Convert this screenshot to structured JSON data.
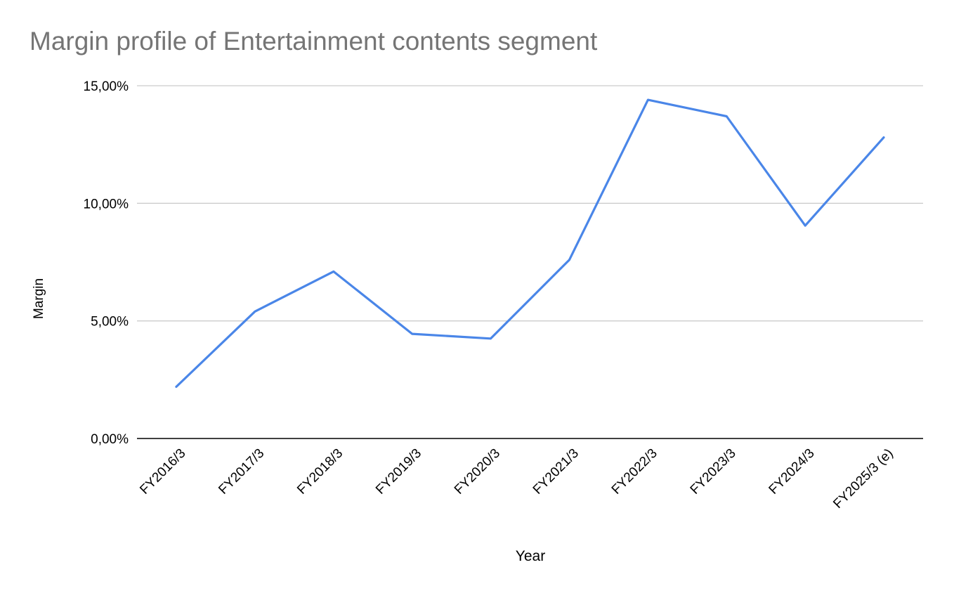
{
  "chart_data": {
    "type": "line",
    "title": "Margin profile of Entertainment contents segment",
    "xlabel": "Year",
    "ylabel": "Margin",
    "categories": [
      "FY2016/3",
      "FY2017/3",
      "FY2018/3",
      "FY2019/3",
      "FY2020/3",
      "FY2021/3",
      "FY2022/3",
      "FY2023/3",
      "FY2024/3",
      "FY2025/3 (e)"
    ],
    "series": [
      {
        "values": [
          2.2,
          5.4,
          7.1,
          4.45,
          4.25,
          7.6,
          14.4,
          13.7,
          9.05,
          12.8
        ]
      }
    ],
    "ylim": [
      0,
      15
    ],
    "yticks": [
      0,
      5,
      10,
      15
    ],
    "ytick_labels": [
      "0,00%",
      "5,00%",
      "10,00%",
      "15,00%"
    ],
    "grid": true,
    "legend": "none",
    "line_color": "#4a86e8",
    "grid_color": "#cccccc",
    "axis_color": "#000000",
    "title_color": "#757575"
  }
}
